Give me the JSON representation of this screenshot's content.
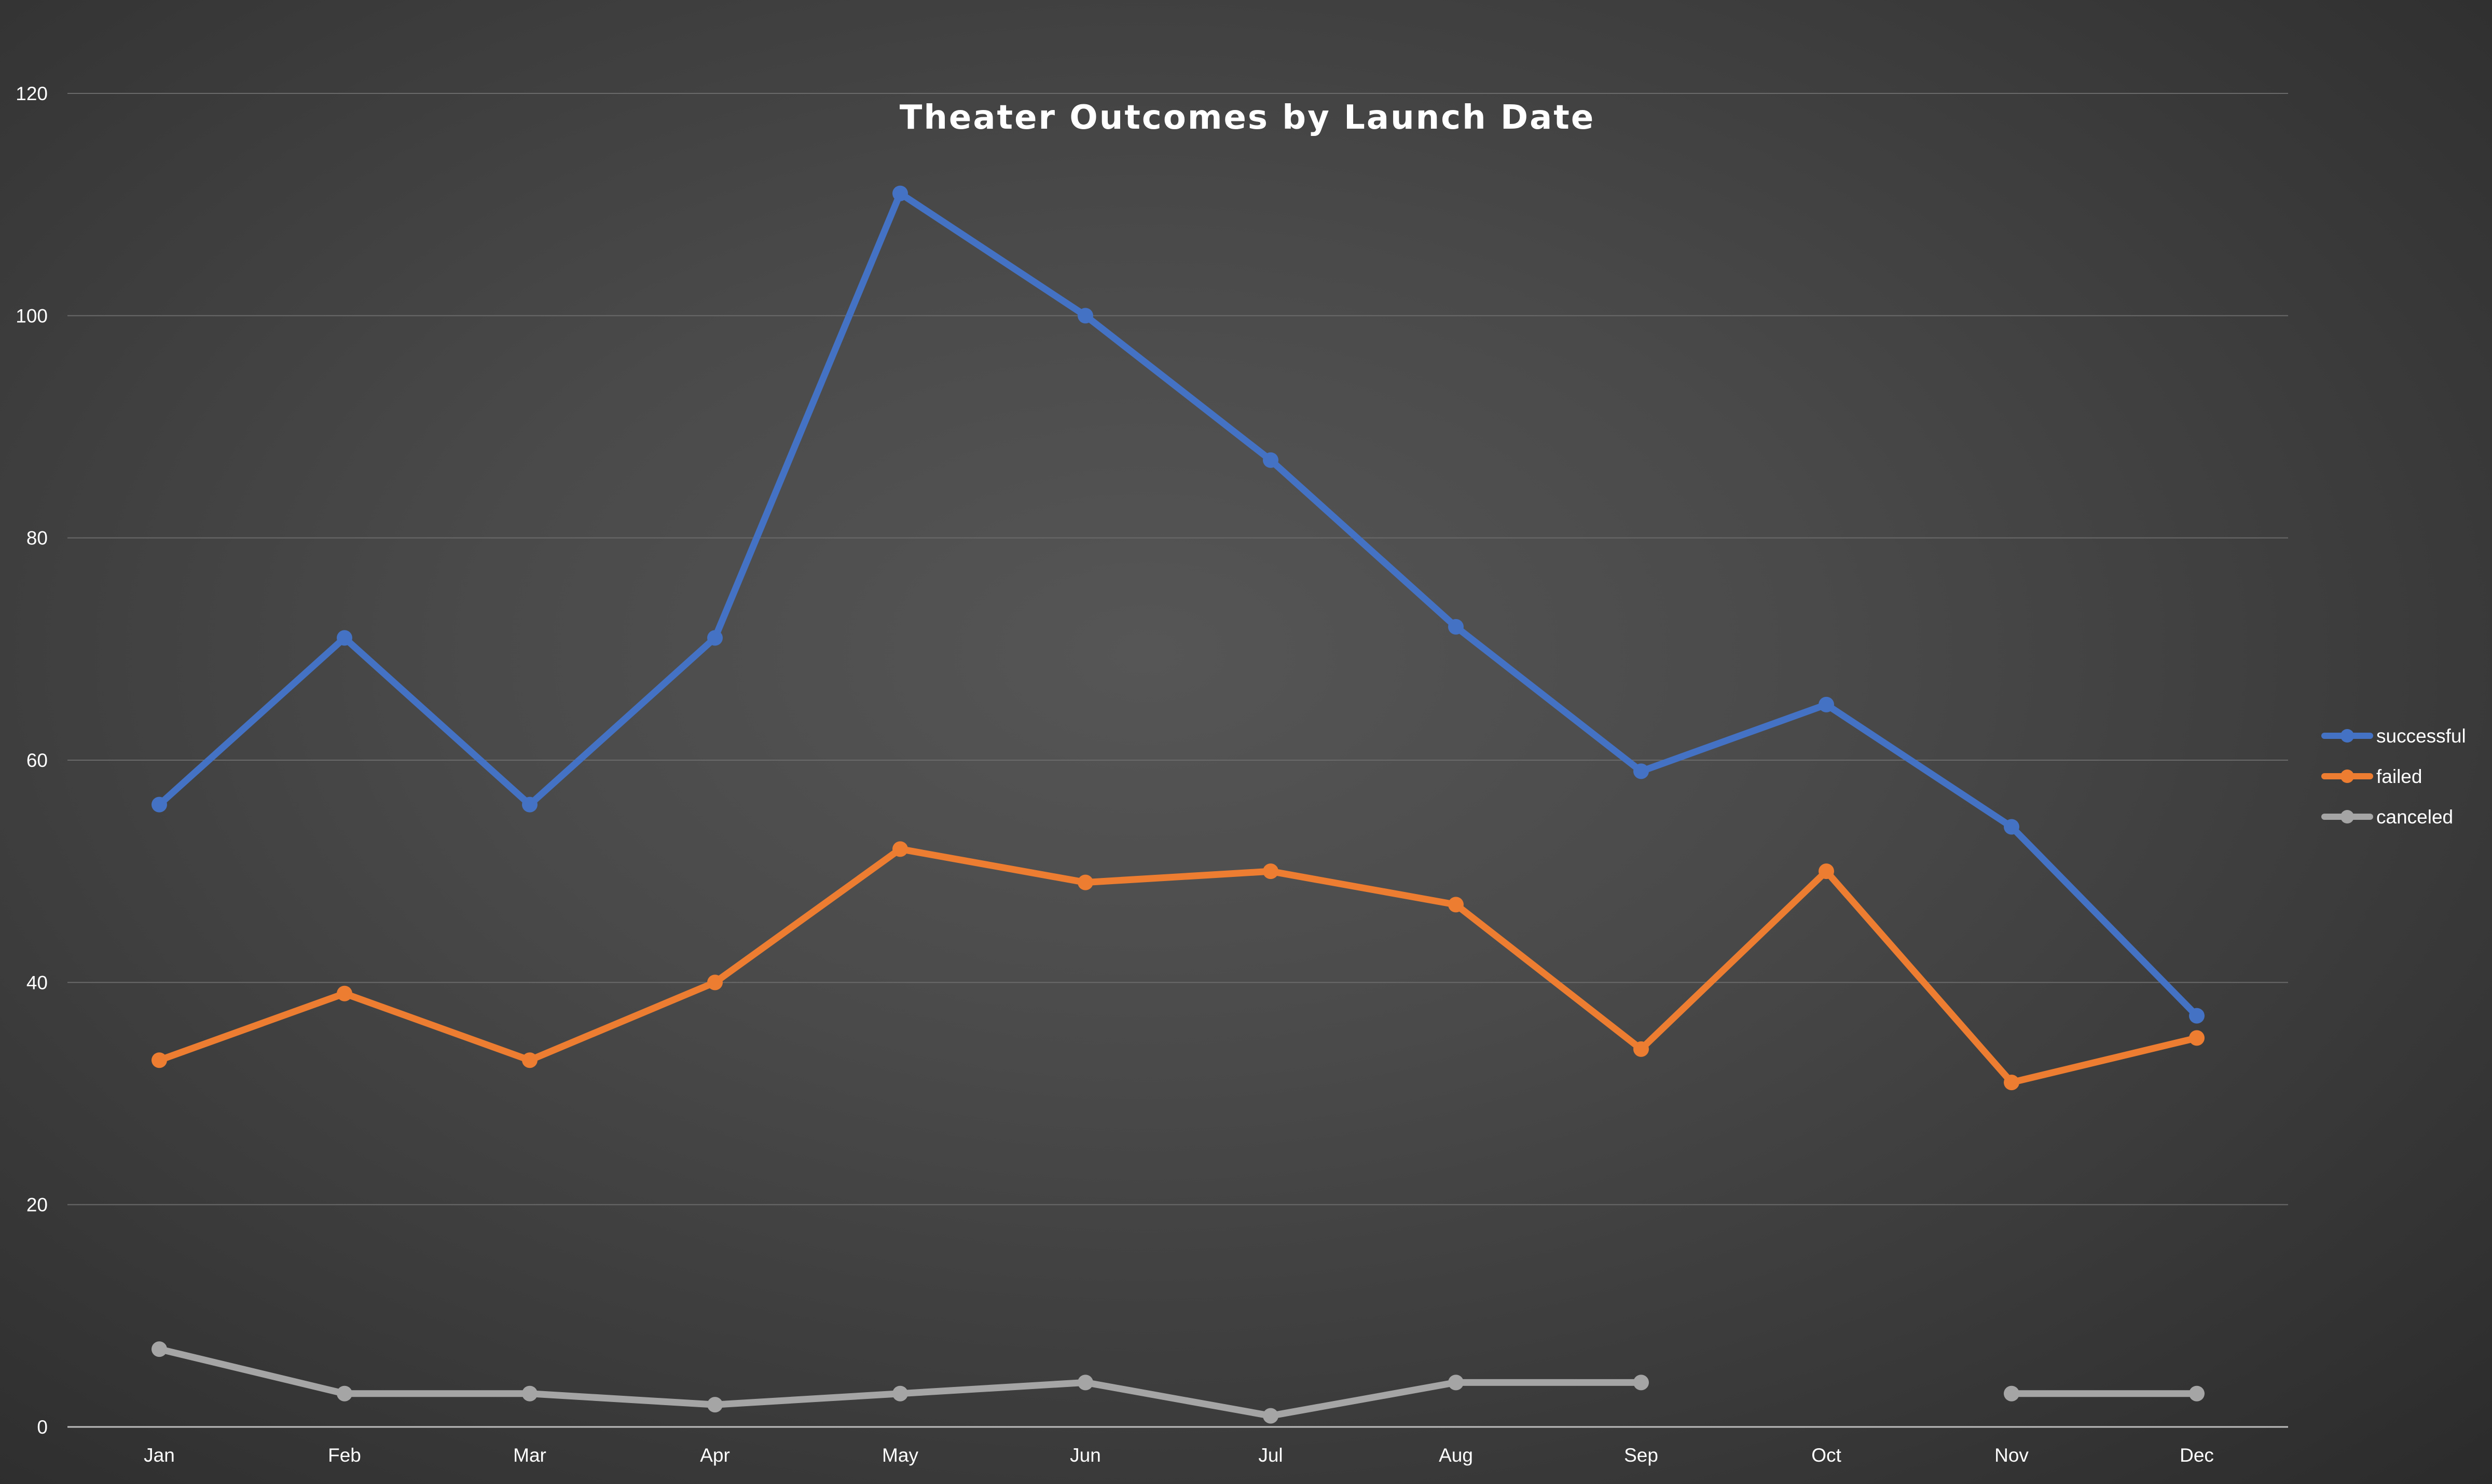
{
  "chart_data": {
    "type": "line",
    "title": "Theater Outcomes by Launch Date",
    "xlabel": "",
    "ylabel": "",
    "categories": [
      "Jan",
      "Feb",
      "Mar",
      "Apr",
      "May",
      "Jun",
      "Jul",
      "Aug",
      "Sep",
      "Oct",
      "Nov",
      "Dec"
    ],
    "ylim": [
      0,
      120
    ],
    "yticks": [
      0,
      20,
      40,
      60,
      80,
      100,
      120
    ],
    "grid": true,
    "legend_position": "right",
    "series": [
      {
        "name": "successful",
        "color": "#4472C4",
        "values": [
          56,
          71,
          56,
          71,
          111,
          100,
          87,
          72,
          59,
          65,
          54,
          37
        ]
      },
      {
        "name": "failed",
        "color": "#ED7D31",
        "values": [
          33,
          39,
          33,
          40,
          52,
          49,
          50,
          47,
          34,
          50,
          31,
          35
        ]
      },
      {
        "name": "canceled",
        "color": "#A5A5A5",
        "values": [
          7,
          3,
          3,
          2,
          3,
          4,
          1,
          4,
          4,
          null,
          3,
          3
        ]
      }
    ]
  }
}
